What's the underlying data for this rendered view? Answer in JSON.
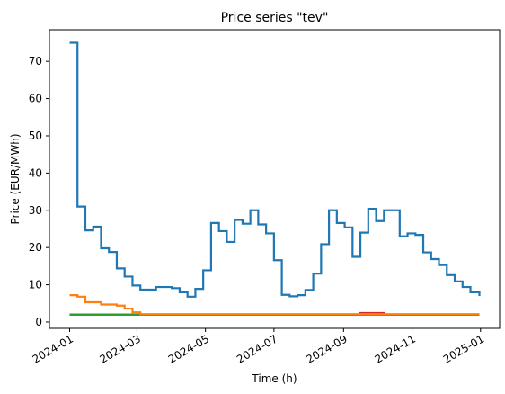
{
  "chart_data": {
    "type": "line",
    "drawstyle": "steps-post",
    "title": "Price series \"tev\"",
    "xlabel": "Time (h)",
    "ylabel": "Price (EUR/MWh)",
    "xlim": [
      "2023-12-14",
      "2025-01-18"
    ],
    "ylim": [
      -1.7,
      78.5
    ],
    "x_ticks": [
      {
        "date": "2024-01-01",
        "label": "2024-01"
      },
      {
        "date": "2024-03-01",
        "label": "2024-03"
      },
      {
        "date": "2024-05-01",
        "label": "2024-05"
      },
      {
        "date": "2024-07-01",
        "label": "2024-07"
      },
      {
        "date": "2024-09-01",
        "label": "2024-09"
      },
      {
        "date": "2024-11-01",
        "label": "2024-11"
      },
      {
        "date": "2025-01-01",
        "label": "2025-01"
      }
    ],
    "y_ticks": [
      0,
      10,
      20,
      30,
      40,
      50,
      60,
      70
    ],
    "grid": false,
    "legend": false,
    "series": [
      {
        "color": "#1f77b4",
        "x": [
          "2024-01-01",
          "2024-01-08",
          "2024-01-15",
          "2024-01-22",
          "2024-01-29",
          "2024-02-05",
          "2024-02-12",
          "2024-02-19",
          "2024-02-26",
          "2024-03-04",
          "2024-03-18",
          "2024-04-01",
          "2024-04-08",
          "2024-04-15",
          "2024-04-22",
          "2024-04-29",
          "2024-05-06",
          "2024-05-13",
          "2024-05-20",
          "2024-05-27",
          "2024-06-03",
          "2024-06-10",
          "2024-06-17",
          "2024-06-24",
          "2024-07-01",
          "2024-07-08",
          "2024-07-15",
          "2024-07-22",
          "2024-07-29",
          "2024-08-05",
          "2024-08-12",
          "2024-08-19",
          "2024-08-26",
          "2024-09-02",
          "2024-09-09",
          "2024-09-16",
          "2024-09-23",
          "2024-09-30",
          "2024-10-07",
          "2024-10-21",
          "2024-10-28",
          "2024-11-04",
          "2024-11-11",
          "2024-11-18",
          "2024-11-25",
          "2024-12-02",
          "2024-12-09",
          "2024-12-16",
          "2024-12-23",
          "2024-12-31"
        ],
        "values": [
          75,
          31,
          24.6,
          25.6,
          19.8,
          18.8,
          14.4,
          12.2,
          9.8,
          8.7,
          9.4,
          9.1,
          8.0,
          6.8,
          8.9,
          13.9,
          26.6,
          24.4,
          21.5,
          27.4,
          26.4,
          30.0,
          26.2,
          23.8,
          16.6,
          7.3,
          6.9,
          7.2,
          8.6,
          13,
          20.9,
          30,
          26.6,
          25.4,
          17.5,
          24,
          30.4,
          27.1,
          30,
          23,
          23.8,
          23.4,
          18.7,
          16.9,
          15.3,
          12.6,
          10.9,
          9.4,
          8.0,
          7.0
        ]
      },
      {
        "color": "#ff7f0e",
        "x": [
          "2024-01-01",
          "2024-01-08",
          "2024-01-15",
          "2024-01-29",
          "2024-02-12",
          "2024-02-19",
          "2024-02-26",
          "2024-03-04",
          "2024-12-31"
        ],
        "values": [
          7.2,
          6.8,
          5.3,
          4.7,
          4.4,
          3.6,
          2.6,
          2.1,
          2.1
        ]
      },
      {
        "color": "#2ca02c",
        "x": [
          "2024-01-01",
          "2024-12-31"
        ],
        "values": [
          2.0,
          2.0
        ]
      },
      {
        "color": "#d62728",
        "x": [
          "2024-01-01",
          "2024-09-16",
          "2024-10-07",
          "2024-12-31"
        ],
        "values": [
          2.0,
          2.4,
          2.0,
          2.0
        ]
      },
      {
        "color": "#9467bd",
        "x": [
          "2024-01-01",
          "2024-12-31"
        ],
        "values": [
          2.0,
          2.0
        ]
      },
      {
        "color": "#8c564b",
        "x": [
          "2024-01-01",
          "2024-12-31"
        ],
        "values": [
          2.0,
          2.0
        ]
      },
      {
        "color": "#e377c2",
        "x": [
          "2024-01-01",
          "2024-12-31"
        ],
        "values": [
          2.0,
          2.0
        ]
      },
      {
        "color": "#7f7f7f",
        "x": [
          "2024-01-01",
          "2024-12-31"
        ],
        "values": [
          2.0,
          2.0
        ]
      }
    ]
  }
}
